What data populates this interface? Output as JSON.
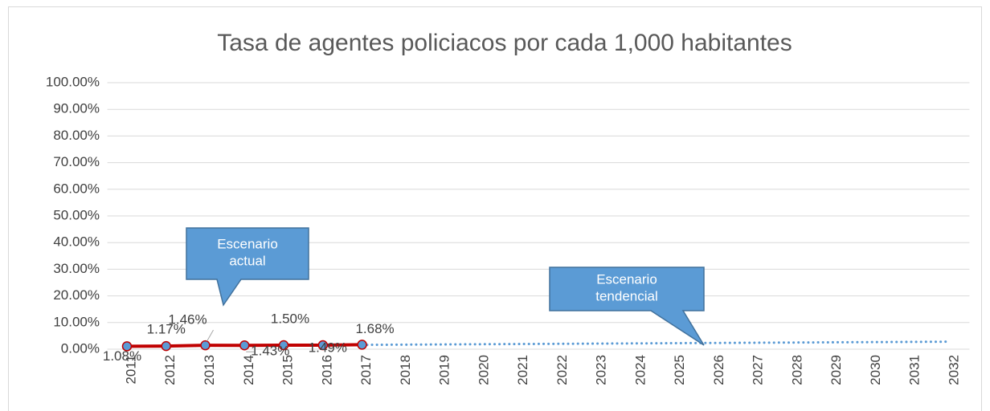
{
  "chart_data": {
    "type": "line",
    "title": "Tasa de agentes policiacos por cada 1,000 habitantes",
    "categories": [
      "2011",
      "2012",
      "2013",
      "2014",
      "2015",
      "2016",
      "2017",
      "2018",
      "2019",
      "2020",
      "2021",
      "2022",
      "2023",
      "2024",
      "2025",
      "2026",
      "2027",
      "2028",
      "2029",
      "2030",
      "2031",
      "2032"
    ],
    "series": [
      {
        "color": "#5b9bd5",
        "style": "dotted",
        "values": [
          1.14,
          1.22,
          1.3,
          1.38,
          1.46,
          1.54,
          1.62,
          1.7,
          1.78,
          1.86,
          1.94,
          2.02,
          2.1,
          2.18,
          2.26,
          2.34,
          2.42,
          2.5,
          2.58,
          2.66,
          2.74,
          2.82
        ]
      },
      {
        "color": "#c00000",
        "marker_color": "#5b9bd5",
        "values": [
          1.08,
          1.17,
          1.46,
          1.43,
          1.5,
          1.49,
          1.68,
          null,
          null,
          null,
          null,
          null,
          null,
          null,
          null,
          null,
          null,
          null,
          null,
          null,
          null,
          null
        ],
        "value_labels": [
          "1.08%",
          "1.17%",
          "1.46%",
          "1.43%",
          "1.50%",
          "1.49%",
          "1.68%",
          null,
          null,
          null,
          null,
          null,
          null,
          null,
          null,
          null,
          null,
          null,
          null,
          null,
          null,
          null
        ]
      }
    ],
    "annotations": [
      "Escenario actual",
      "Escenario tendencial"
    ],
    "ylim": [
      0,
      100
    ],
    "yticks": [
      {
        "value": 0,
        "label": "0.00%"
      },
      {
        "value": 10,
        "label": "10.00%"
      },
      {
        "value": 20,
        "label": "20.00%"
      },
      {
        "value": 30,
        "label": "30.00%"
      },
      {
        "value": 40,
        "label": "40.00%"
      },
      {
        "value": 50,
        "label": "50.00%"
      },
      {
        "value": 60,
        "label": "60.00%"
      },
      {
        "value": 70,
        "label": "70.00%"
      },
      {
        "value": 80,
        "label": "80.00%"
      },
      {
        "value": 90,
        "label": "90.00%"
      },
      {
        "value": 100,
        "label": "100.00%"
      }
    ],
    "grid": true
  }
}
